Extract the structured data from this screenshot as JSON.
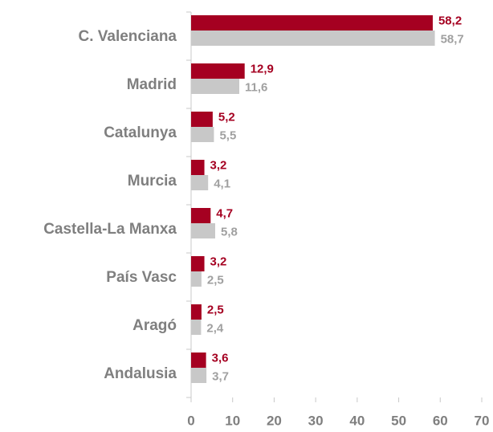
{
  "chart_data": {
    "type": "bar",
    "orientation": "horizontal",
    "categories": [
      "C. Valenciana",
      "Madrid",
      "Catalunya",
      "Murcia",
      "Castella-La Manxa",
      "País Vasc",
      "Aragó",
      "Andalusia"
    ],
    "series": [
      {
        "color": "#a50021",
        "values": [
          58.2,
          12.9,
          5.2,
          3.2,
          4.7,
          3.2,
          2.5,
          3.6
        ],
        "value_labels": [
          "58,2",
          "12,9",
          "5,2",
          "3,2",
          "4,7",
          "3,2",
          "2,5",
          "3,6"
        ]
      },
      {
        "color": "#c8c8c8",
        "values": [
          58.7,
          11.6,
          5.5,
          4.1,
          5.8,
          2.5,
          2.4,
          3.7
        ],
        "value_labels": [
          "58,7",
          "11,6",
          "5,5",
          "4,1",
          "5,8",
          "2,5",
          "2,4",
          "3,7"
        ]
      }
    ],
    "xlim": [
      0,
      70
    ],
    "xticks": [
      0,
      10,
      20,
      30,
      40,
      50,
      60,
      70
    ]
  }
}
